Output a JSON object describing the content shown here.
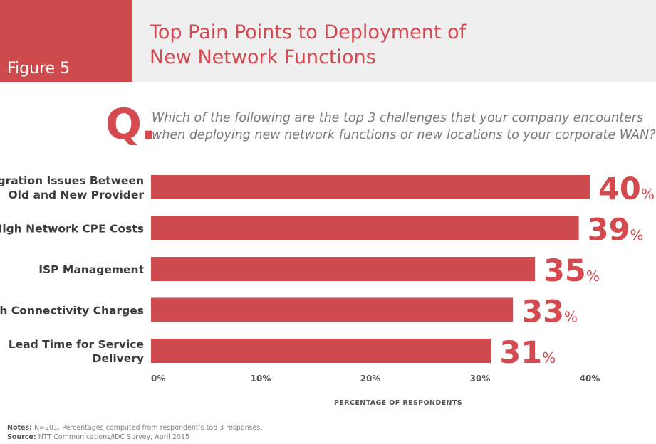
{
  "figure": {
    "label": "Figure 5",
    "title_line1": "Top Pain Points to Deployment of",
    "title_line2": "New Network Functions"
  },
  "question": {
    "mark": "Q.",
    "line1": "Which of the following are the top 3 challenges that your company encounters",
    "line2": "when deploying new network functions or new locations to your corporate WAN?"
  },
  "chart_data": {
    "type": "bar",
    "orientation": "horizontal",
    "categories": [
      [
        "Migration Issues Between",
        "Old and New Provider"
      ],
      [
        "High Network CPE Costs"
      ],
      [
        "ISP Management"
      ],
      [
        "High Connectivity Charges"
      ],
      [
        "Lead Time for Service",
        "Delivery"
      ]
    ],
    "values": [
      40,
      39,
      35,
      33,
      31
    ],
    "value_labels": [
      "40",
      "39",
      "35",
      "33",
      "31"
    ],
    "value_suffix": "%",
    "xlim": [
      0,
      40
    ],
    "xticks": [
      "0%",
      "10%",
      "20%",
      "30%",
      "40%"
    ],
    "xlabel": "PERCENTAGE OF RESPONDENTS",
    "grid": false,
    "colors": {
      "bar": "#cf4a4d",
      "value_text": "#d44a4f",
      "category_text": "#3b3b3b",
      "tick_text": "#555555"
    }
  },
  "notes": {
    "notes_label": "Notes:",
    "notes_text": " N=201. Percentages computed from respondent’s top 3 responses.",
    "source_label": "Source:",
    "source_text": " NTT Communications/IDC Survey, April 2015"
  }
}
